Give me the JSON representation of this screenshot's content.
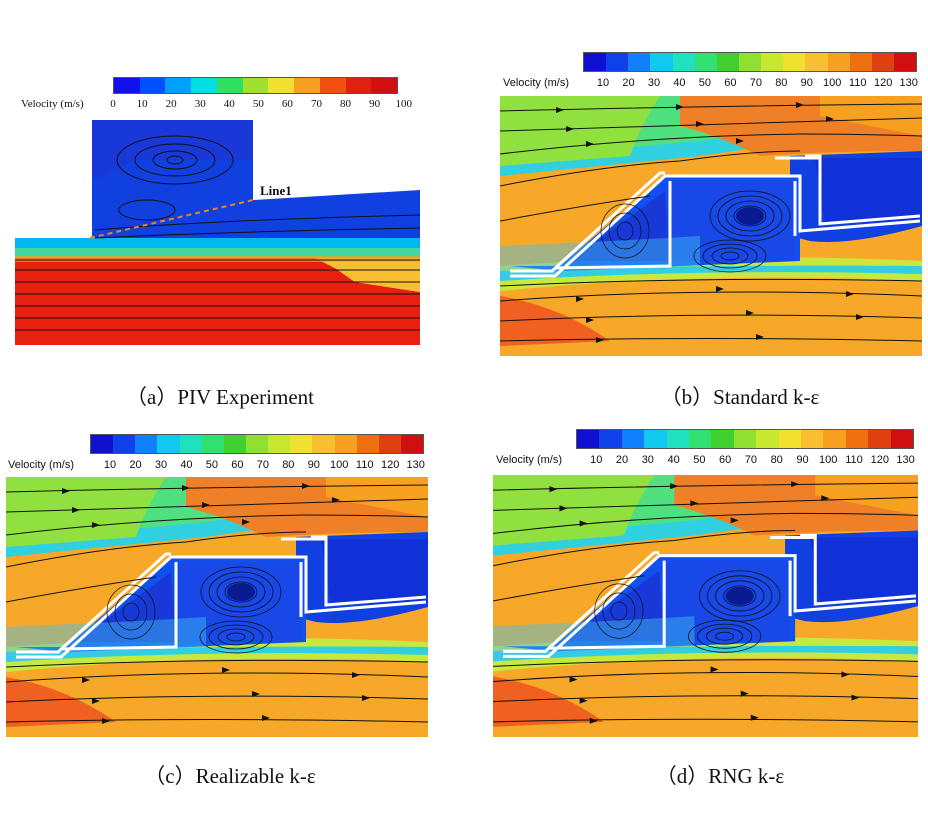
{
  "colorbar_label": "Velocity (m/s)",
  "piv_ticks": [
    "0",
    "10",
    "20",
    "30",
    "40",
    "50",
    "60",
    "70",
    "80",
    "90",
    "100"
  ],
  "cfd_ticks": [
    "10",
    "20",
    "30",
    "40",
    "50",
    "60",
    "70",
    "80",
    "90",
    "100",
    "110",
    "120",
    "130"
  ],
  "piv_colors": [
    "#1010f0",
    "#0050ff",
    "#00a0ff",
    "#00e0e0",
    "#30e060",
    "#a0e030",
    "#f0e030",
    "#f8a020",
    "#f05010",
    "#e02010",
    "#d01010"
  ],
  "cfd_colors": [
    "#1010d0",
    "#1040e8",
    "#1080ff",
    "#10c8f0",
    "#20e0c0",
    "#30e070",
    "#40d030",
    "#90e030",
    "#c8e830",
    "#f0e030",
    "#f8c030",
    "#f8a020",
    "#f07010",
    "#e04010",
    "#d01010"
  ],
  "line_annotation": "Line1",
  "panels": {
    "a": {
      "caption": "（a）PIV Experiment"
    },
    "b": {
      "caption": "（b）Standard k-ε"
    },
    "c": {
      "caption": "（c）Realizable k-ε"
    },
    "d": {
      "caption": "（d）RNG k-ε"
    }
  }
}
